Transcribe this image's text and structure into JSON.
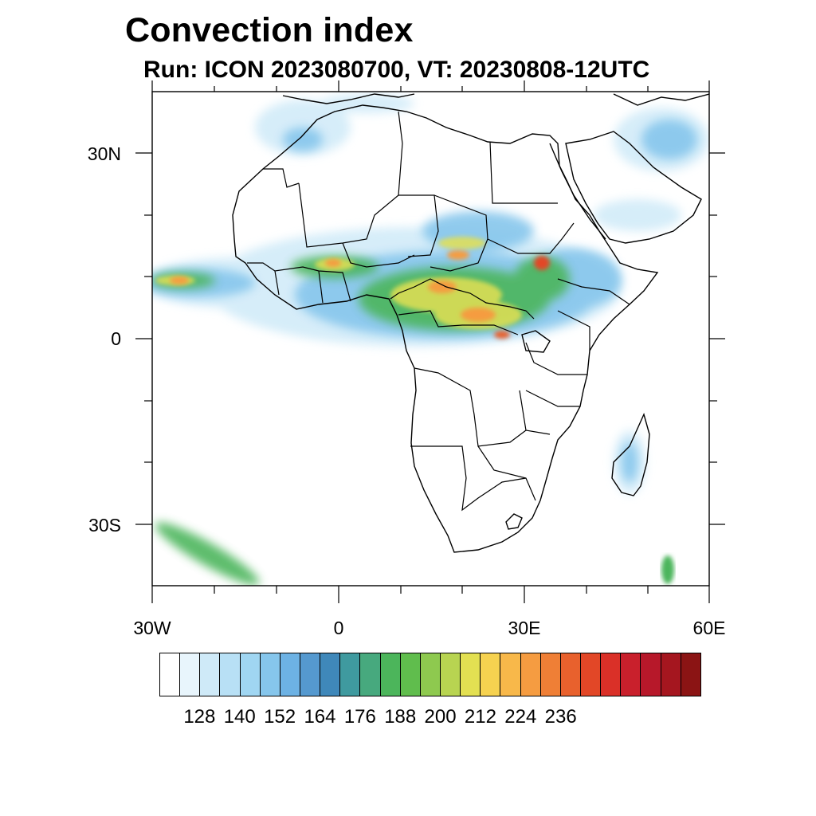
{
  "header": {
    "title": "Convection index",
    "subtitle": "Run: ICON 2023080700,  VT: 20230808-12UTC"
  },
  "axes": {
    "lat_labels": [
      "30N",
      "0",
      "30S"
    ],
    "lon_labels": [
      "30W",
      "0",
      "30E",
      "60E"
    ],
    "lon_range": [
      -30,
      60
    ],
    "lat_range": [
      -40,
      40
    ]
  },
  "colorbar": {
    "colors": [
      "#ffffff",
      "#e8f5fc",
      "#cfeaf8",
      "#b8e0f5",
      "#a0d6f2",
      "#86c6ec",
      "#6db2e4",
      "#5599cf",
      "#3f88ba",
      "#3f9a9f",
      "#47a97e",
      "#4cb55b",
      "#60bd4d",
      "#8ec94f",
      "#b8d451",
      "#e3e052",
      "#f6d250",
      "#f8b84a",
      "#f59c41",
      "#ef7f36",
      "#e8612d",
      "#e24727",
      "#da3028",
      "#c9202c",
      "#b7182a",
      "#a5161f",
      "#8b1414"
    ],
    "tick_labels": [
      "128",
      "140",
      "152",
      "164",
      "176",
      "188",
      "200",
      "212",
      "224",
      "236"
    ]
  }
}
